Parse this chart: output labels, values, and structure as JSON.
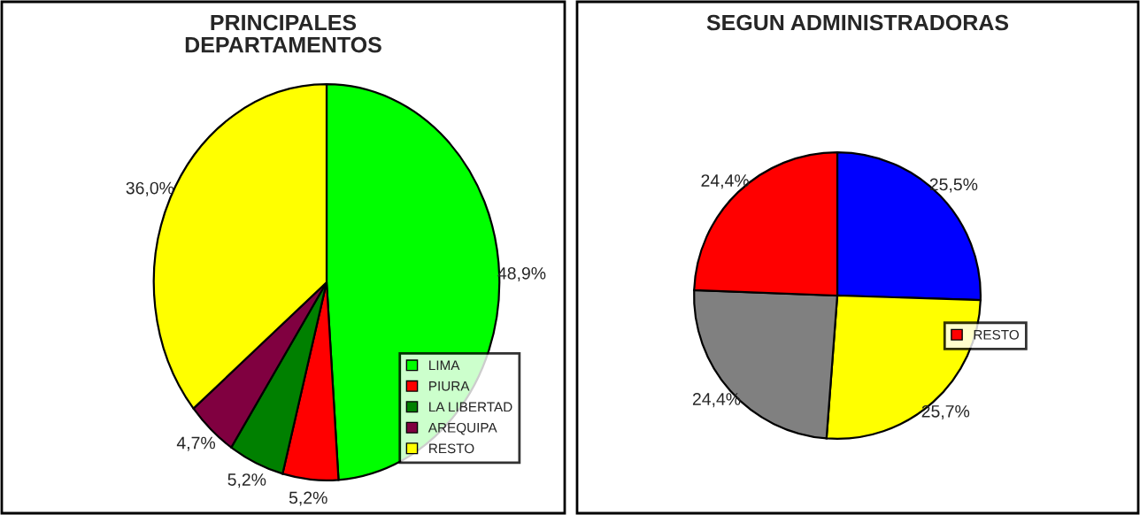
{
  "chart_data": [
    {
      "type": "pie",
      "title": "PRINCIPALES\nDEPARTAMENTOS",
      "categories": [
        "LIMA",
        "PIURA",
        "LA LIBERTAD",
        "AREQUIPA",
        "RESTO"
      ],
      "values": [
        48.9,
        5.2,
        5.2,
        4.7,
        36.0
      ],
      "value_labels": [
        "48,9%",
        "5,2%",
        "5,2%",
        "4,7%",
        "36,0%"
      ],
      "colors": [
        "#00ff00",
        "#ff0000",
        "#008000",
        "#800040",
        "#ffff00"
      ],
      "legend": "bottom right"
    },
    {
      "type": "pie",
      "title": "SEGUN ADMINISTRADORAS",
      "categories": [
        null,
        null,
        null,
        "RESTO"
      ],
      "values": [
        25.5,
        25.7,
        24.4,
        24.4
      ],
      "value_labels": [
        "25,5%",
        "25,7%",
        "24,4%",
        "24,4%"
      ],
      "colors": [
        "#0000ff",
        "#ffff00",
        "#808080",
        "#ff0000"
      ],
      "legend": "bottom right"
    }
  ]
}
